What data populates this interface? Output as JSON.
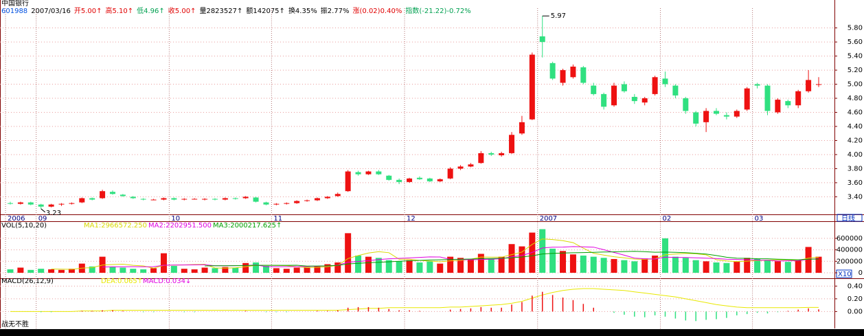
{
  "header": {
    "name": "中国银行",
    "fields": [
      {
        "text": "601988",
        "color": "#0050e0"
      },
      {
        "text": "2007/03/16",
        "color": "#000000"
      },
      {
        "text": "开5.00↑",
        "color": "#e00000"
      },
      {
        "text": "高5.10↑",
        "color": "#e00000"
      },
      {
        "text": "低4.96↑",
        "color": "#00a050"
      },
      {
        "text": "收5.00↑",
        "color": "#e00000"
      },
      {
        "text": "量2823527↑",
        "color": "#000000"
      },
      {
        "text": "额142075↑",
        "color": "#000000"
      },
      {
        "text": "换4.35%",
        "color": "#000000"
      },
      {
        "text": "振2.77%",
        "color": "#000000"
      },
      {
        "text": "涨(0.02)0.40%",
        "color": "#e00000"
      },
      {
        "text": "指数(-21.22)-0.72%",
        "color": "#00a050"
      }
    ]
  },
  "labels": {
    "period": "日线",
    "scale": "X10",
    "footer": "战无不胜"
  },
  "chart_data": [
    {
      "type": "candlestick",
      "up_color": "#ee1111",
      "down_color": "#30e080",
      "grid": true,
      "categories": [
        "2006",
        null,
        null,
        "09",
        null,
        null,
        null,
        null,
        null,
        null,
        null,
        null,
        null,
        null,
        null,
        null,
        "10",
        null,
        null,
        null,
        null,
        null,
        null,
        null,
        null,
        null,
        "11",
        null,
        null,
        null,
        null,
        null,
        null,
        null,
        null,
        null,
        null,
        null,
        null,
        "12",
        null,
        null,
        null,
        null,
        null,
        null,
        null,
        null,
        null,
        null,
        null,
        null,
        "2007",
        null,
        null,
        null,
        null,
        null,
        null,
        null,
        null,
        null,
        null,
        null,
        "02",
        null,
        null,
        null,
        null,
        null,
        null,
        null,
        null,
        "03",
        null,
        null,
        null,
        null,
        null,
        null
      ],
      "open": [
        3.31,
        3.3,
        3.32,
        3.29,
        3.26,
        3.29,
        3.3,
        3.32,
        3.38,
        3.38,
        3.47,
        3.43,
        3.4,
        3.37,
        3.36,
        3.36,
        3.38,
        3.36,
        3.37,
        3.36,
        3.37,
        3.36,
        3.38,
        3.38,
        3.39,
        3.32,
        3.29,
        3.3,
        3.31,
        3.34,
        3.35,
        3.38,
        3.41,
        3.48,
        3.75,
        3.72,
        3.76,
        3.7,
        3.64,
        3.61,
        3.67,
        3.66,
        3.62,
        3.66,
        3.8,
        3.83,
        3.88,
        4.02,
        3.99,
        4.02,
        4.3,
        4.5,
        5.68,
        5.3,
        5.02,
        5.1,
        5.24,
        4.98,
        4.86,
        4.7,
        5.0,
        4.82,
        4.74,
        4.86,
        5.08,
        4.98,
        4.8,
        4.6,
        4.46,
        4.62,
        4.56,
        4.54,
        4.64,
        5.0,
        4.98,
        4.6,
        4.76,
        4.7,
        4.9,
        5.0
      ],
      "high": [
        3.33,
        3.33,
        3.33,
        3.3,
        3.3,
        3.31,
        3.32,
        3.39,
        3.39,
        3.5,
        3.49,
        3.44,
        3.41,
        3.38,
        3.37,
        3.39,
        3.39,
        3.38,
        3.38,
        3.38,
        3.38,
        3.39,
        3.39,
        3.41,
        3.4,
        3.33,
        3.31,
        3.32,
        3.35,
        3.36,
        3.39,
        3.41,
        3.46,
        3.78,
        3.77,
        3.77,
        3.78,
        3.71,
        3.66,
        3.67,
        3.69,
        3.67,
        3.66,
        3.82,
        3.85,
        3.88,
        4.05,
        4.04,
        4.04,
        4.32,
        4.55,
        5.45,
        5.97,
        5.32,
        5.22,
        5.28,
        5.26,
        5.02,
        4.88,
        5.02,
        5.04,
        4.86,
        4.82,
        5.12,
        5.18,
        5.0,
        4.82,
        4.62,
        4.66,
        4.66,
        4.6,
        4.64,
        4.96,
        5.02,
        5.0,
        4.8,
        4.78,
        4.92,
        5.2,
        5.1
      ],
      "low": [
        3.29,
        3.29,
        3.28,
        3.23,
        3.25,
        3.27,
        3.29,
        3.31,
        3.35,
        3.37,
        3.43,
        3.4,
        3.37,
        3.35,
        3.35,
        3.35,
        3.35,
        3.35,
        3.36,
        3.35,
        3.35,
        3.35,
        3.36,
        3.37,
        3.32,
        3.28,
        3.28,
        3.29,
        3.3,
        3.33,
        3.34,
        3.37,
        3.4,
        3.47,
        3.7,
        3.71,
        3.71,
        3.63,
        3.58,
        3.6,
        3.64,
        3.61,
        3.61,
        3.65,
        3.78,
        3.82,
        3.87,
        3.98,
        3.97,
        4.01,
        4.28,
        4.49,
        5.38,
        5.06,
        4.98,
        5.08,
        5.0,
        4.84,
        4.64,
        4.68,
        4.88,
        4.72,
        4.7,
        4.84,
        4.96,
        4.8,
        4.58,
        4.4,
        4.32,
        4.56,
        4.5,
        4.52,
        4.62,
        4.94,
        4.56,
        4.58,
        4.66,
        4.66,
        4.88,
        4.96
      ],
      "close": [
        3.3,
        3.32,
        3.29,
        3.26,
        3.29,
        3.3,
        3.31,
        3.38,
        3.36,
        3.48,
        3.44,
        3.41,
        3.38,
        3.36,
        3.36,
        3.38,
        3.36,
        3.37,
        3.37,
        3.37,
        3.36,
        3.38,
        3.37,
        3.4,
        3.33,
        3.29,
        3.3,
        3.31,
        3.34,
        3.35,
        3.38,
        3.4,
        3.44,
        3.76,
        3.72,
        3.76,
        3.72,
        3.64,
        3.61,
        3.66,
        3.65,
        3.62,
        3.65,
        3.8,
        3.83,
        3.86,
        4.02,
        4.0,
        4.02,
        4.28,
        4.46,
        5.42,
        5.6,
        5.08,
        5.2,
        5.25,
        5.02,
        4.86,
        4.68,
        4.98,
        4.9,
        4.76,
        4.8,
        5.1,
        5.0,
        4.84,
        4.62,
        4.44,
        4.62,
        4.58,
        4.54,
        4.62,
        4.94,
        4.98,
        4.62,
        4.78,
        4.7,
        4.9,
        5.06,
        5.0
      ],
      "ylim": [
        3.15,
        6.06
      ],
      "yticks": [
        {
          "value": 3.4,
          "label": "3.40"
        },
        {
          "value": 3.6,
          "label": "3.60"
        },
        {
          "value": 3.8,
          "label": "3.80"
        },
        {
          "value": 4.0,
          "label": "4.00"
        },
        {
          "value": 4.2,
          "label": "4.20"
        },
        {
          "value": 4.4,
          "label": "4.40"
        },
        {
          "value": 4.6,
          "label": "4.60"
        },
        {
          "value": 4.8,
          "label": "4.80"
        },
        {
          "value": 5.0,
          "label": "5.00"
        },
        {
          "value": 5.2,
          "label": "5.20"
        },
        {
          "value": 5.4,
          "label": "5.40"
        },
        {
          "value": 5.6,
          "label": "5.60"
        },
        {
          "value": 5.8,
          "label": "5.80"
        }
      ]
    },
    {
      "type": "bar",
      "title": "VOL(5,10,20)",
      "up_color": "#ee1111",
      "down_color": "#30e080",
      "grid": true,
      "values": [
        60000,
        90000,
        50000,
        70000,
        60000,
        50000,
        70000,
        160000,
        110000,
        280000,
        100000,
        90000,
        70000,
        60000,
        80000,
        340000,
        120000,
        70000,
        60000,
        90000,
        80000,
        100000,
        90000,
        170000,
        180000,
        120000,
        80000,
        70000,
        90000,
        100000,
        120000,
        150000,
        180000,
        690000,
        300000,
        280000,
        260000,
        220000,
        200000,
        220000,
        180000,
        200000,
        160000,
        280000,
        260000,
        240000,
        330000,
        250000,
        280000,
        500000,
        460000,
        700000,
        760000,
        420000,
        380000,
        320000,
        300000,
        280000,
        260000,
        240000,
        220000,
        200000,
        250000,
        300000,
        600000,
        280000,
        260000,
        220000,
        200000,
        180000,
        170000,
        200000,
        260000,
        240000,
        220000,
        200000,
        190000,
        220000,
        450000,
        280000
      ],
      "series": [
        {
          "name": "MA1:2966572.250",
          "color": "#d8d800",
          "values": [
            null,
            null,
            null,
            null,
            66000,
            64000,
            60000,
            82000,
            90000,
            134000,
            144000,
            150000,
            130000,
            120000,
            80000,
            130000,
            134000,
            138000,
            144000,
            148000,
            84000,
            80000,
            86000,
            106000,
            128000,
            132000,
            128000,
            124000,
            108000,
            90000,
            94000,
            106000,
            128000,
            248000,
            300000,
            344000,
            368000,
            350000,
            236000,
            236000,
            216000,
            204000,
            192000,
            208000,
            216000,
            236000,
            274000,
            272000,
            272000,
            316000,
            362000,
            494000,
            590000,
            580000,
            560000,
            526000,
            428000,
            340000,
            308000,
            280000,
            260000,
            240000,
            234000,
            242000,
            314000,
            326000,
            338000,
            332000,
            312000,
            228000,
            206000,
            194000,
            202000,
            214000,
            220000,
            228000,
            226000,
            214000,
            256000,
            272000
          ]
        },
        {
          "name": "MA2:2202951.500",
          "color": "#e000e0",
          "values": [
            null,
            null,
            null,
            null,
            null,
            null,
            null,
            null,
            null,
            100000,
            104000,
            104000,
            106000,
            105000,
            107000,
            132000,
            134000,
            136000,
            138000,
            140000,
            122000,
            123000,
            125000,
            127000,
            137000,
            106000,
            107000,
            107000,
            108000,
            110000,
            114000,
            120000,
            132000,
            184000,
            196000,
            212000,
            230000,
            244000,
            252000,
            259000,
            268000,
            277000,
            275000,
            234000,
            230000,
            226000,
            232000,
            236000,
            246000,
            276000,
            302000,
            354000,
            432000,
            446000,
            448000,
            456000,
            452000,
            446000,
            402000,
            354000,
            306000,
            256000,
            244000,
            240000,
            272000,
            268000,
            267000,
            261000,
            255000,
            248000,
            236000,
            232000,
            228000,
            222000,
            218000,
            205000,
            209000,
            211000,
            236000,
            244000
          ]
        },
        {
          "name": "MA3:2000217.625↑",
          "color": "#00a000",
          "values": [
            null,
            null,
            null,
            null,
            null,
            null,
            null,
            null,
            null,
            null,
            null,
            null,
            null,
            null,
            null,
            null,
            null,
            null,
            null,
            120000,
            122000,
            123000,
            125000,
            127000,
            130000,
            130000,
            131000,
            131000,
            132000,
            117000,
            118000,
            121000,
            128000,
            155000,
            165000,
            175000,
            183000,
            191000,
            200000,
            210000,
            216000,
            223000,
            226000,
            232000,
            237000,
            240000,
            245000,
            249000,
            253000,
            262000,
            275000,
            296000,
            328000,
            339000,
            344000,
            348000,
            352000,
            357000,
            361000,
            365000,
            370000,
            373000,
            368000,
            358000,
            360000,
            356000,
            350000,
            340000,
            326000,
            300000,
            270000,
            255000,
            252000,
            246000,
            244000,
            237000,
            232000,
            226000,
            236000,
            240000
          ]
        }
      ],
      "ylim": [
        0,
        850000
      ],
      "yticks": [
        0,
        200000,
        400000,
        600000
      ]
    },
    {
      "type": "macd",
      "title": "MACD(26,12,9)",
      "up_color": "#ee1111",
      "down_color": "#30e080",
      "grid": true,
      "series": [
        {
          "name": "DEA:0.065↑",
          "color": "#e8e800",
          "type": "line",
          "values": [
            0,
            0,
            0,
            0,
            0,
            0,
            0,
            0.01,
            0.01,
            0.01,
            0.02,
            0.02,
            0.02,
            0.02,
            0.02,
            0.02,
            0.02,
            0.02,
            0.02,
            0.02,
            0.02,
            0.02,
            0.02,
            0.02,
            0.02,
            0.02,
            0.02,
            0.02,
            0.02,
            0.02,
            0.02,
            0.02,
            0.02,
            0.03,
            0.04,
            0.05,
            0.05,
            0.06,
            0.06,
            0.06,
            0.06,
            0.06,
            0.06,
            0.07,
            0.07,
            0.08,
            0.09,
            0.1,
            0.11,
            0.13,
            0.16,
            0.21,
            0.26,
            0.3,
            0.33,
            0.35,
            0.36,
            0.36,
            0.35,
            0.34,
            0.33,
            0.31,
            0.29,
            0.27,
            0.25,
            0.23,
            0.2,
            0.17,
            0.14,
            0.11,
            0.09,
            0.07,
            0.06,
            0.06,
            0.06,
            0.06,
            0.06,
            0.06,
            0.065,
            0.065
          ]
        },
        {
          "name": "MACD:0.034↓",
          "color": "#e000e0",
          "type": "bar",
          "values": [
            0,
            0,
            0,
            -0.01,
            -0.01,
            0,
            0,
            0.01,
            0.01,
            0.02,
            0.02,
            0.01,
            0,
            -0.01,
            -0.01,
            0,
            0,
            -0.01,
            -0.01,
            0,
            0,
            0,
            0,
            0.01,
            0,
            -0.01,
            -0.01,
            -0.01,
            0,
            0,
            0.01,
            0.01,
            0.02,
            0.06,
            0.07,
            0.07,
            0.06,
            0.04,
            0.02,
            0.02,
            0.01,
            0,
            0,
            0.03,
            0.04,
            0.05,
            0.07,
            0.06,
            0.06,
            0.11,
            0.15,
            0.25,
            0.31,
            0.26,
            0.22,
            0.18,
            0.12,
            0.06,
            0,
            -0.02,
            -0.05,
            -0.08,
            -0.09,
            -0.06,
            -0.08,
            -0.11,
            -0.14,
            -0.15,
            -0.13,
            -0.12,
            -0.1,
            -0.06,
            -0.04,
            -0.02,
            -0.03,
            -0.01,
            0.01,
            0.03,
            0.05,
            0.034
          ]
        }
      ],
      "ylim": [
        -0.19,
        0.49
      ],
      "yticks": [
        {
          "value": 0,
          "label": "0.00"
        },
        {
          "value": 0.2,
          "label": "0.20"
        },
        {
          "value": 0.4,
          "label": "0.40"
        }
      ]
    }
  ]
}
